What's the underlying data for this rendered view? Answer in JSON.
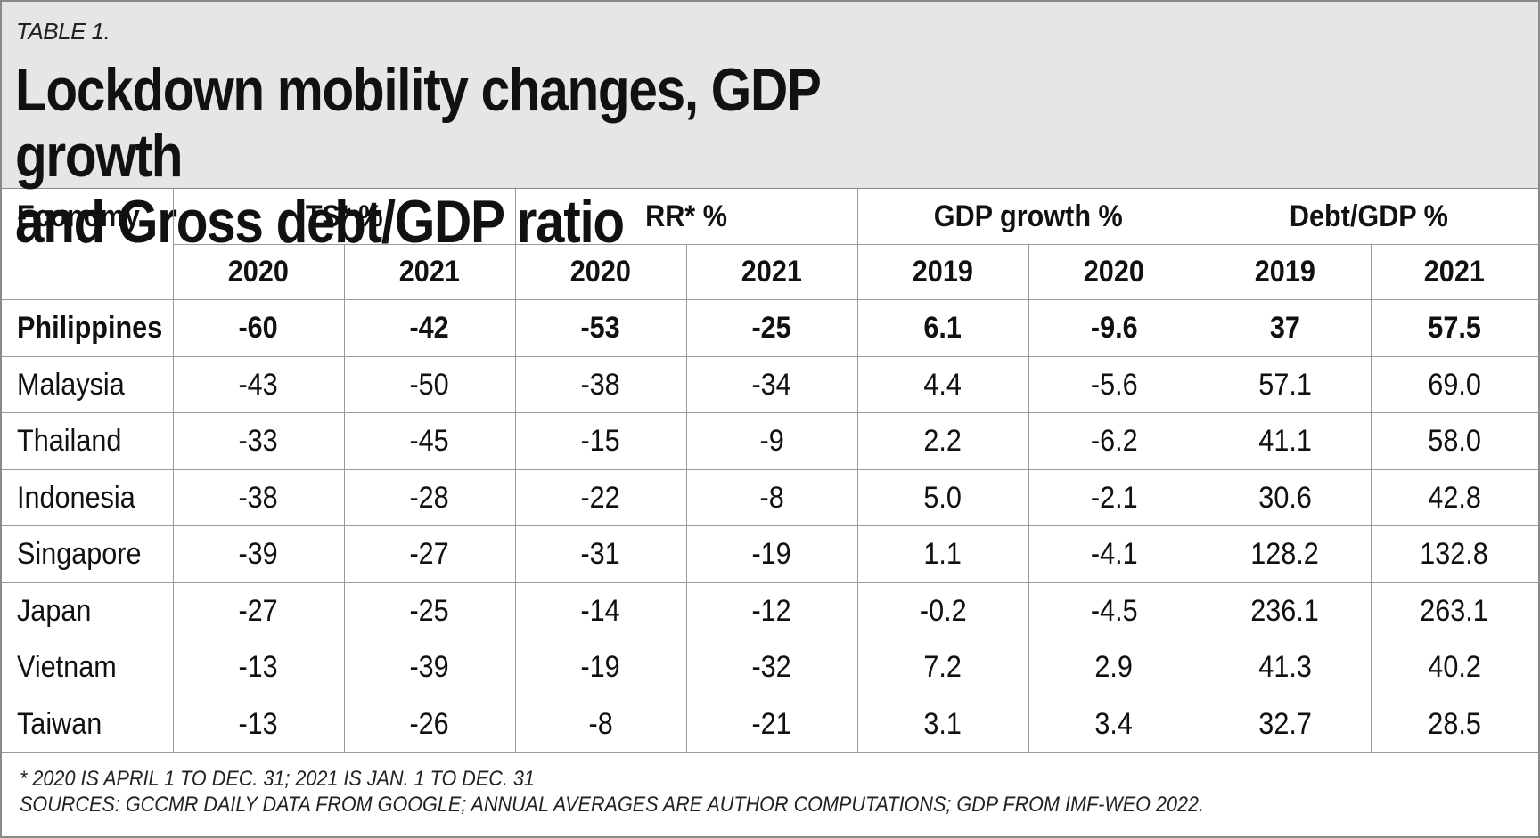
{
  "header": {
    "table_label": "TABLE 1.",
    "title_line1": "Lockdown mobility changes, GDP growth",
    "title_line2": "and Gross debt/GDP ratio"
  },
  "columns": {
    "economy": "Economy",
    "groups": [
      "TS* %",
      "RR* %",
      "GDP growth %",
      "Debt/GDP %"
    ],
    "years": [
      "2020",
      "2021",
      "2020",
      "2021",
      "2019",
      "2020",
      "2019",
      "2021"
    ]
  },
  "chart_data": {
    "type": "table",
    "title": "Lockdown mobility changes, GDP growth and Gross debt/GDP ratio",
    "row_header": "Economy",
    "column_groups": [
      {
        "name": "TS* %",
        "years": [
          "2020",
          "2021"
        ]
      },
      {
        "name": "RR* %",
        "years": [
          "2020",
          "2021"
        ]
      },
      {
        "name": "GDP growth %",
        "years": [
          "2019",
          "2020"
        ]
      },
      {
        "name": "Debt/GDP %",
        "years": [
          "2019",
          "2021"
        ]
      }
    ],
    "rows": [
      {
        "economy": "Philippines",
        "values": [
          "-60",
          "-42",
          "-53",
          "-25",
          "6.1",
          "-9.6",
          "37",
          "57.5"
        ],
        "bold": true
      },
      {
        "economy": "Malaysia",
        "values": [
          "-43",
          "-50",
          "-38",
          "-34",
          "4.4",
          "-5.6",
          "57.1",
          "69.0"
        ]
      },
      {
        "economy": "Thailand",
        "values": [
          "-33",
          "-45",
          "-15",
          "-9",
          "2.2",
          "-6.2",
          "41.1",
          "58.0"
        ]
      },
      {
        "economy": "Indonesia",
        "values": [
          "-38",
          "-28",
          "-22",
          "-8",
          "5.0",
          "-2.1",
          "30.6",
          "42.8"
        ]
      },
      {
        "economy": "Singapore",
        "values": [
          "-39",
          "-27",
          "-31",
          "-19",
          "1.1",
          "-4.1",
          "128.2",
          "132.8"
        ]
      },
      {
        "economy": "Japan",
        "values": [
          "-27",
          "-25",
          "-14",
          "-12",
          "-0.2",
          "-4.5",
          "236.1",
          "263.1"
        ]
      },
      {
        "economy": "Vietnam",
        "values": [
          "-13",
          "-39",
          "-19",
          "-32",
          "7.2",
          "2.9",
          "41.3",
          "40.2"
        ]
      },
      {
        "economy": "Taiwan",
        "values": [
          "-13",
          "-26",
          "-8",
          "-21",
          "3.1",
          "3.4",
          "32.7",
          "28.5"
        ]
      }
    ]
  },
  "footnotes": {
    "note": "*  2020 IS APRIL 1 TO DEC. 31; 2021 IS JAN. 1 TO DEC. 31",
    "sources": "SOURCES: GCCMR DAILY DATA FROM GOOGLE; ANNUAL AVERAGES ARE AUTHOR COMPUTATIONS; GDP FROM IMF-WEO 2022."
  }
}
